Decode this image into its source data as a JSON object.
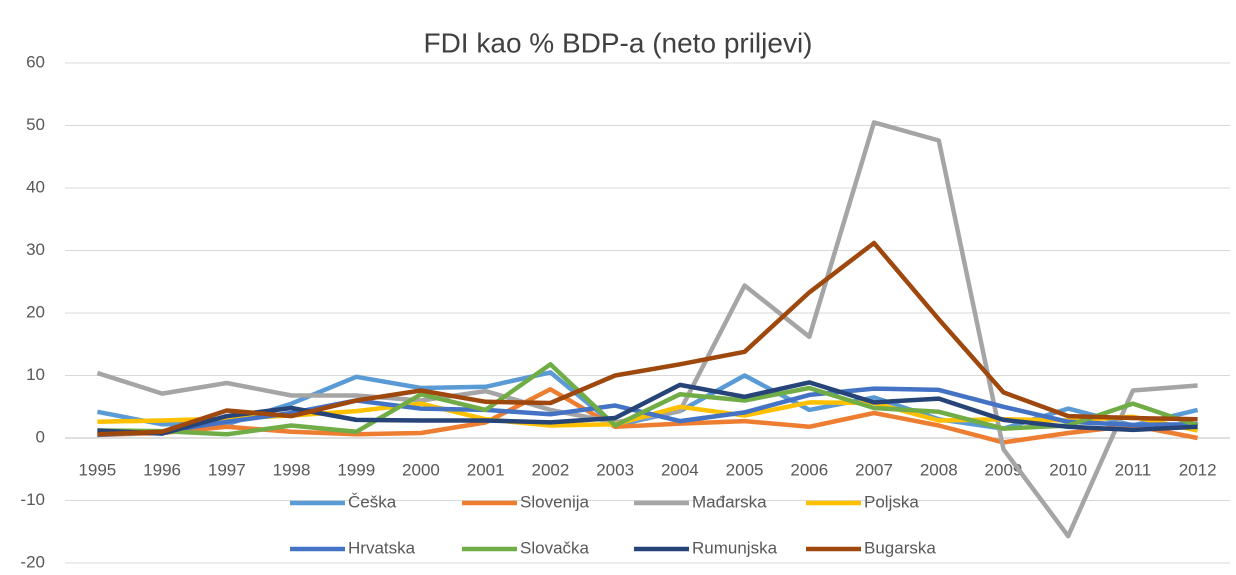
{
  "chart_data": {
    "type": "line",
    "title": "FDI kao % BDP-a (neto priljevi)",
    "categories": [
      "1995",
      "1996",
      "1997",
      "1998",
      "1999",
      "2000",
      "2001",
      "2002",
      "2003",
      "2004",
      "2005",
      "2006",
      "2007",
      "2008",
      "2009",
      "2010",
      "2011",
      "2012"
    ],
    "series": [
      {
        "name": "Češka",
        "color": "#5B9BD5",
        "values": [
          4.2,
          2.2,
          2.2,
          5.5,
          9.8,
          8.0,
          8.2,
          10.5,
          2.0,
          4.3,
          10.0,
          4.5,
          6.5,
          3.0,
          1.5,
          4.7,
          2.0,
          4.5
        ]
      },
      {
        "name": "Slovenija",
        "color": "#ED7D31",
        "values": [
          0.5,
          0.8,
          1.8,
          1.0,
          0.6,
          0.8,
          2.5,
          7.8,
          1.8,
          2.3,
          2.7,
          1.8,
          4.0,
          2.0,
          -0.7,
          0.8,
          2.0,
          0.0
        ]
      },
      {
        "name": "Mađarska",
        "color": "#A5A5A5",
        "values": [
          10.4,
          7.1,
          8.8,
          6.8,
          6.8,
          6.0,
          7.5,
          4.5,
          2.5,
          4.3,
          24.4,
          16.2,
          50.5,
          47.6,
          -1.8,
          -15.7,
          7.6,
          8.4
        ]
      },
      {
        "name": "Poljska",
        "color": "#FFC000",
        "values": [
          2.6,
          2.8,
          3.1,
          3.6,
          4.3,
          5.5,
          3.0,
          2.0,
          2.2,
          5.0,
          3.6,
          5.7,
          5.6,
          2.8,
          3.0,
          2.8,
          3.4,
          1.2
        ]
      },
      {
        "name": "Hrvatska",
        "color": "#4472C4",
        "values": [
          0.5,
          1.0,
          2.6,
          4.0,
          6.0,
          4.7,
          4.5,
          3.8,
          5.2,
          2.7,
          4.1,
          6.9,
          7.9,
          7.7,
          5.0,
          2.6,
          2.1,
          2.2
        ]
      },
      {
        "name": "Slovačka",
        "color": "#70AD47",
        "values": [
          1.2,
          1.1,
          0.6,
          2.0,
          1.0,
          7.0,
          4.5,
          11.8,
          2.0,
          7.0,
          6.0,
          8.0,
          4.8,
          4.2,
          1.5,
          2.0,
          5.5,
          2.0
        ]
      },
      {
        "name": "Rumunjska",
        "color": "#264478",
        "values": [
          1.2,
          0.7,
          3.5,
          4.8,
          2.9,
          2.8,
          2.8,
          2.5,
          3.2,
          8.5,
          6.6,
          8.9,
          5.7,
          6.3,
          2.9,
          1.8,
          1.3,
          1.8
        ]
      },
      {
        "name": "Bugarska",
        "color": "#9E480E",
        "values": [
          0.6,
          1.0,
          4.4,
          3.5,
          6.0,
          7.6,
          5.8,
          5.6,
          10.0,
          11.8,
          13.8,
          23.3,
          31.2,
          19.0,
          7.3,
          3.5,
          3.2,
          3.0
        ]
      }
    ],
    "ylim": [
      -20,
      60
    ],
    "yticks": [
      -20,
      -10,
      0,
      10,
      20,
      30,
      40,
      50,
      60
    ],
    "grid": true,
    "legend": "bottom"
  }
}
